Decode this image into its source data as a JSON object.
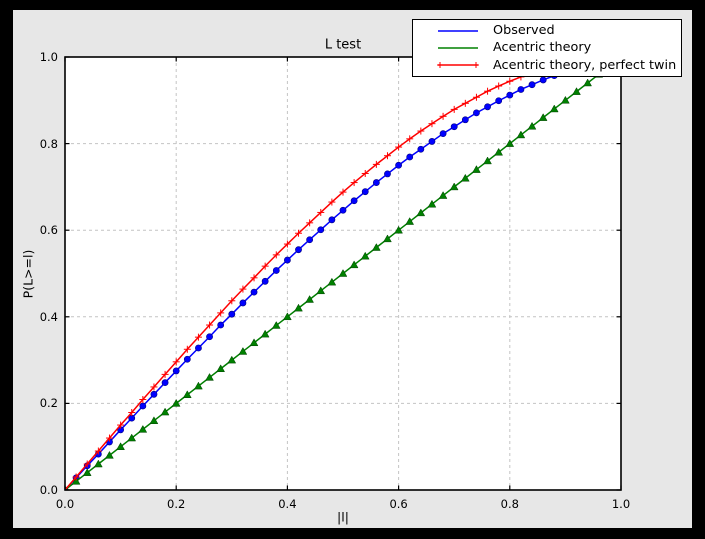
{
  "window": {
    "colors": {
      "outer_background": "#000000",
      "figure_background": "#e7e7e7",
      "plot_background": "#ffffff",
      "frame": "#000000",
      "grid": "#c4c4c4",
      "text": "#000000",
      "legend_background": "#ffffff"
    }
  },
  "chart_data": {
    "type": "line",
    "title": "L test",
    "xlabel": "|l|",
    "ylabel": "P(L>=l)",
    "xlim": [
      0.0,
      1.0
    ],
    "ylim": [
      0.0,
      1.0
    ],
    "xtick_labels": [
      "0.0",
      "0.2",
      "0.4",
      "0.6",
      "0.8",
      "1.0"
    ],
    "ytick_labels": [
      "0.0",
      "0.2",
      "0.4",
      "0.6",
      "0.8",
      "1.0"
    ],
    "grid": "dashed",
    "legend_position": "upper right",
    "x": [
      0,
      0.02,
      0.04,
      0.06,
      0.08,
      0.1,
      0.12,
      0.14,
      0.16,
      0.18,
      0.2,
      0.22,
      0.24,
      0.26,
      0.28,
      0.3,
      0.32,
      0.34,
      0.36,
      0.38,
      0.4,
      0.42,
      0.44,
      0.46,
      0.48,
      0.5,
      0.52,
      0.54,
      0.56,
      0.58,
      0.6,
      0.62,
      0.64,
      0.66,
      0.68,
      0.7,
      0.72,
      0.74,
      0.76,
      0.78,
      0.8,
      0.82,
      0.84,
      0.86,
      0.88,
      0.9,
      0.92,
      0.94,
      0.96,
      0.98,
      1.0
    ],
    "series": [
      {
        "name": "Observed",
        "color": "#0000ff",
        "marker": "circle",
        "values": [
          0,
          0.028,
          0.056,
          0.083,
          0.111,
          0.139,
          0.166,
          0.194,
          0.221,
          0.248,
          0.275,
          0.302,
          0.328,
          0.354,
          0.381,
          0.406,
          0.432,
          0.457,
          0.482,
          0.507,
          0.531,
          0.555,
          0.578,
          0.601,
          0.624,
          0.646,
          0.668,
          0.689,
          0.71,
          0.73,
          0.75,
          0.769,
          0.787,
          0.805,
          0.823,
          0.839,
          0.855,
          0.871,
          0.885,
          0.899,
          0.912,
          0.925,
          0.936,
          0.947,
          0.957,
          0.967,
          0.975,
          0.983,
          0.989,
          0.995,
          1.0
        ]
      },
      {
        "name": "Acentric theory",
        "color": "#008000",
        "marker": "triangle-up",
        "values": [
          0,
          0.02,
          0.04,
          0.06,
          0.08,
          0.1,
          0.12,
          0.14,
          0.16,
          0.18,
          0.2,
          0.22,
          0.24,
          0.26,
          0.28,
          0.3,
          0.32,
          0.34,
          0.36,
          0.38,
          0.4,
          0.42,
          0.44,
          0.46,
          0.48,
          0.5,
          0.52,
          0.54,
          0.56,
          0.58,
          0.6,
          0.62,
          0.64,
          0.66,
          0.68,
          0.7,
          0.72,
          0.74,
          0.76,
          0.78,
          0.8,
          0.82,
          0.84,
          0.86,
          0.88,
          0.9,
          0.92,
          0.94,
          0.96,
          0.98,
          1.0
        ]
      },
      {
        "name": "Acentric theory, perfect twin",
        "color": "#ff0000",
        "marker": "plus",
        "values": [
          0,
          0.03,
          0.06,
          0.09,
          0.12,
          0.15,
          0.179,
          0.209,
          0.238,
          0.267,
          0.296,
          0.325,
          0.353,
          0.381,
          0.409,
          0.437,
          0.464,
          0.49,
          0.517,
          0.543,
          0.568,
          0.593,
          0.617,
          0.641,
          0.665,
          0.688,
          0.71,
          0.731,
          0.752,
          0.772,
          0.792,
          0.811,
          0.829,
          0.846,
          0.863,
          0.879,
          0.893,
          0.907,
          0.921,
          0.933,
          0.944,
          0.954,
          0.964,
          0.972,
          0.979,
          0.986,
          0.991,
          0.995,
          0.998,
          0.999,
          1.0
        ]
      }
    ]
  }
}
